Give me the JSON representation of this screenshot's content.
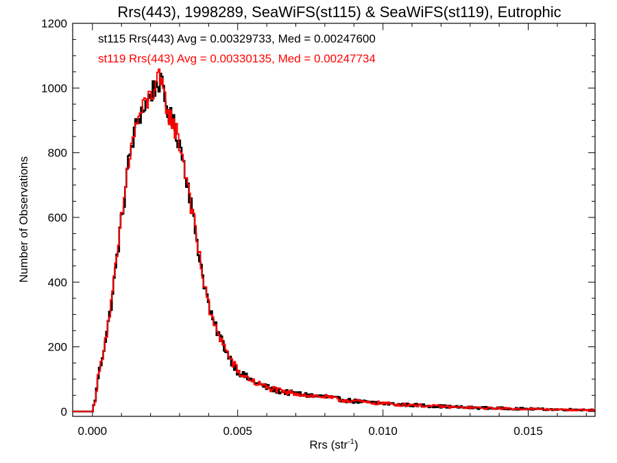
{
  "chart_data": {
    "type": "line",
    "title": "Rrs(443), 1998289, SeaWiFS(st115) & SeaWiFS(st119), Eutrophic",
    "xlabel": "Rrs (str",
    "xlabel_sup": "-1",
    "xlabel_close": ")",
    "ylabel": "Number of Observations",
    "xlim": [
      -0.00068,
      0.0173
    ],
    "ylim": [
      -15,
      1200
    ],
    "x_ticks": [
      0.0,
      0.005,
      0.01,
      0.015
    ],
    "x_tick_labels": [
      "0.000",
      "0.005",
      "0.010",
      "0.015"
    ],
    "y_ticks": [
      0,
      200,
      400,
      600,
      800,
      1000,
      1200
    ],
    "y_tick_labels": [
      "0",
      "200",
      "400",
      "600",
      "800",
      "1000",
      "1200"
    ],
    "grid": false,
    "bin_width": 5e-05,
    "bin_start": -0.00068,
    "annotations": [
      {
        "text": "st115 Rrs(443) Avg = 0.00329733, Med = 0.00247600",
        "color": "#000000"
      },
      {
        "text": "st119 Rrs(443) Avg = 0.00330135, Med = 0.00247734",
        "color": "#ff0000"
      }
    ],
    "series": [
      {
        "color": "#000000",
        "points": [
          [
            -0.00068,
            0
          ],
          [
            0.0,
            0
          ],
          [
            5e-05,
            20
          ],
          [
            0.0001,
            40
          ],
          [
            0.00015,
            70
          ],
          [
            0.0002,
            110
          ],
          [
            0.0003,
            150
          ],
          [
            0.0004,
            200
          ],
          [
            0.0005,
            250
          ],
          [
            0.0006,
            300
          ],
          [
            0.0007,
            370
          ],
          [
            0.0008,
            440
          ],
          [
            0.0009,
            520
          ],
          [
            0.001,
            590
          ],
          [
            0.0011,
            660
          ],
          [
            0.0012,
            740
          ],
          [
            0.0013,
            800
          ],
          [
            0.0014,
            840
          ],
          [
            0.0015,
            880
          ],
          [
            0.0016,
            910
          ],
          [
            0.0017,
            930
          ],
          [
            0.0018,
            945
          ],
          [
            0.0019,
            960
          ],
          [
            0.002,
            980
          ],
          [
            0.0021,
            995
          ],
          [
            0.0022,
            1010
          ],
          [
            0.0023,
            1020
          ],
          [
            0.0024,
            1000
          ],
          [
            0.0025,
            960
          ],
          [
            0.0026,
            930
          ],
          [
            0.0027,
            905
          ],
          [
            0.0028,
            885
          ],
          [
            0.0029,
            860
          ],
          [
            0.003,
            830
          ],
          [
            0.0031,
            790
          ],
          [
            0.0032,
            740
          ],
          [
            0.0033,
            700
          ],
          [
            0.0034,
            640
          ],
          [
            0.0035,
            580
          ],
          [
            0.0036,
            530
          ],
          [
            0.0037,
            470
          ],
          [
            0.0038,
            420
          ],
          [
            0.0039,
            375
          ],
          [
            0.004,
            330
          ],
          [
            0.0041,
            290
          ],
          [
            0.0042,
            265
          ],
          [
            0.0043,
            250
          ],
          [
            0.0044,
            230
          ],
          [
            0.0045,
            210
          ],
          [
            0.0046,
            190
          ],
          [
            0.0047,
            170
          ],
          [
            0.0048,
            155
          ],
          [
            0.0049,
            140
          ],
          [
            0.005,
            125
          ],
          [
            0.0052,
            112
          ],
          [
            0.0054,
            100
          ],
          [
            0.0056,
            90
          ],
          [
            0.0058,
            82
          ],
          [
            0.006,
            75
          ],
          [
            0.0063,
            66
          ],
          [
            0.0066,
            60
          ],
          [
            0.007,
            55
          ],
          [
            0.0075,
            50
          ],
          [
            0.008,
            45
          ],
          [
            0.0085,
            38
          ],
          [
            0.009,
            32
          ],
          [
            0.0095,
            28
          ],
          [
            0.01,
            25
          ],
          [
            0.0105,
            22
          ],
          [
            0.011,
            20
          ],
          [
            0.0115,
            18
          ],
          [
            0.012,
            16
          ],
          [
            0.0125,
            14
          ],
          [
            0.013,
            12
          ],
          [
            0.0135,
            11
          ],
          [
            0.014,
            10
          ],
          [
            0.0145,
            9
          ],
          [
            0.015,
            8
          ],
          [
            0.0155,
            7
          ],
          [
            0.016,
            6
          ],
          [
            0.0165,
            6
          ],
          [
            0.017,
            5
          ],
          [
            0.0173,
            5
          ]
        ]
      },
      {
        "color": "#ff0000",
        "points": [
          [
            -0.00068,
            0
          ],
          [
            0.0,
            0
          ],
          [
            5e-05,
            18
          ],
          [
            0.0001,
            38
          ],
          [
            0.00015,
            72
          ],
          [
            0.0002,
            108
          ],
          [
            0.0003,
            148
          ],
          [
            0.0004,
            205
          ],
          [
            0.0005,
            248
          ],
          [
            0.0006,
            305
          ],
          [
            0.0007,
            365
          ],
          [
            0.0008,
            445
          ],
          [
            0.0009,
            515
          ],
          [
            0.001,
            595
          ],
          [
            0.0011,
            655
          ],
          [
            0.0012,
            745
          ],
          [
            0.0013,
            795
          ],
          [
            0.0014,
            845
          ],
          [
            0.0015,
            875
          ],
          [
            0.0016,
            915
          ],
          [
            0.0017,
            925
          ],
          [
            0.0018,
            950
          ],
          [
            0.0019,
            955
          ],
          [
            0.002,
            985
          ],
          [
            0.0021,
            990
          ],
          [
            0.0022,
            1015
          ],
          [
            0.0023,
            1025
          ],
          [
            0.0024,
            995
          ],
          [
            0.0025,
            965
          ],
          [
            0.0026,
            925
          ],
          [
            0.0027,
            910
          ],
          [
            0.0028,
            880
          ],
          [
            0.0029,
            865
          ],
          [
            0.003,
            825
          ],
          [
            0.0031,
            795
          ],
          [
            0.0032,
            735
          ],
          [
            0.0033,
            705
          ],
          [
            0.0034,
            635
          ],
          [
            0.0035,
            585
          ],
          [
            0.0036,
            525
          ],
          [
            0.0037,
            475
          ],
          [
            0.0038,
            415
          ],
          [
            0.0039,
            380
          ],
          [
            0.004,
            325
          ],
          [
            0.0041,
            292
          ],
          [
            0.0042,
            262
          ],
          [
            0.0043,
            252
          ],
          [
            0.0044,
            228
          ],
          [
            0.0045,
            212
          ],
          [
            0.0046,
            188
          ],
          [
            0.0047,
            172
          ],
          [
            0.0048,
            153
          ],
          [
            0.0049,
            142
          ],
          [
            0.005,
            123
          ],
          [
            0.0052,
            110
          ],
          [
            0.0054,
            102
          ],
          [
            0.0056,
            88
          ],
          [
            0.0058,
            84
          ],
          [
            0.006,
            73
          ],
          [
            0.0063,
            68
          ],
          [
            0.0066,
            58
          ],
          [
            0.007,
            57
          ],
          [
            0.0075,
            48
          ],
          [
            0.008,
            46
          ],
          [
            0.0085,
            36
          ],
          [
            0.009,
            33
          ],
          [
            0.0095,
            27
          ],
          [
            0.01,
            26
          ],
          [
            0.0105,
            21
          ],
          [
            0.011,
            21
          ],
          [
            0.0115,
            17
          ],
          [
            0.012,
            16
          ],
          [
            0.0125,
            13
          ],
          [
            0.013,
            12
          ],
          [
            0.0135,
            10
          ],
          [
            0.014,
            10
          ],
          [
            0.0145,
            8
          ],
          [
            0.015,
            8
          ],
          [
            0.0155,
            7
          ],
          [
            0.016,
            6
          ],
          [
            0.0165,
            5
          ],
          [
            0.017,
            5
          ],
          [
            0.0173,
            4
          ]
        ]
      }
    ]
  }
}
